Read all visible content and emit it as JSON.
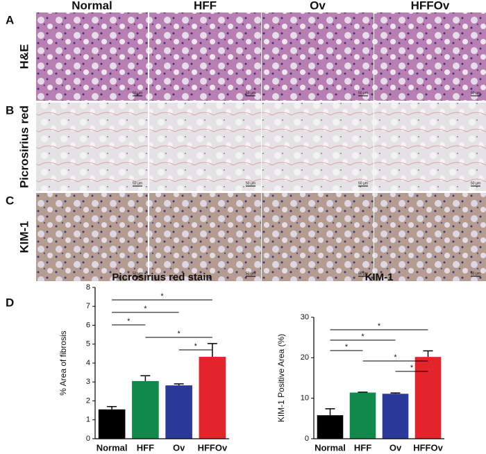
{
  "panel_labels": [
    "A",
    "B",
    "C",
    "D"
  ],
  "column_headers": [
    "Normal",
    "HFF",
    "Ov",
    "HFFOv"
  ],
  "row_labels": [
    "H&E",
    "Picrosirius red",
    "KIM-1"
  ],
  "scale_bar": "50 µm",
  "chart_data": [
    {
      "type": "bar",
      "title": "Picrosirius red stain",
      "y_label": "% Area of fibrosis",
      "categories": [
        "Normal",
        "HFF",
        "Ov",
        "HFFOv"
      ],
      "values": [
        1.55,
        3.05,
        2.82,
        4.33
      ],
      "errors": [
        0.15,
        0.28,
        0.08,
        0.7
      ],
      "colors": [
        "#000000",
        "#0f8a4a",
        "#2b3a9a",
        "#e3242b"
      ],
      "ylim": [
        0,
        8
      ],
      "yticks": [
        0,
        1,
        2,
        3,
        4,
        5,
        6,
        7,
        8
      ],
      "significance": [
        {
          "pair": [
            0,
            3
          ],
          "label": "*"
        },
        {
          "pair": [
            0,
            2
          ],
          "label": "*"
        },
        {
          "pair": [
            0,
            1
          ],
          "label": "*"
        },
        {
          "pair": [
            1,
            3
          ],
          "label": "*"
        },
        {
          "pair": [
            2,
            3
          ],
          "label": "*"
        }
      ]
    },
    {
      "type": "bar",
      "title": "KIM-1",
      "y_label": "KIM-1 Positive Area (%)",
      "categories": [
        "Normal",
        "HFF",
        "Ov",
        "HFFOv"
      ],
      "values": [
        5.8,
        11.4,
        11.1,
        20.2
      ],
      "errors": [
        1.6,
        0.1,
        0.2,
        1.5
      ],
      "colors": [
        "#000000",
        "#0f8a4a",
        "#2b3a9a",
        "#e3242b"
      ],
      "ylim": [
        0,
        30
      ],
      "yticks": [
        0,
        10,
        20,
        30
      ],
      "significance": [
        {
          "pair": [
            0,
            3
          ],
          "label": "*"
        },
        {
          "pair": [
            0,
            2
          ],
          "label": "*"
        },
        {
          "pair": [
            0,
            1
          ],
          "label": "*"
        },
        {
          "pair": [
            1,
            3
          ],
          "label": "*"
        },
        {
          "pair": [
            2,
            3
          ],
          "label": "*"
        }
      ]
    }
  ]
}
